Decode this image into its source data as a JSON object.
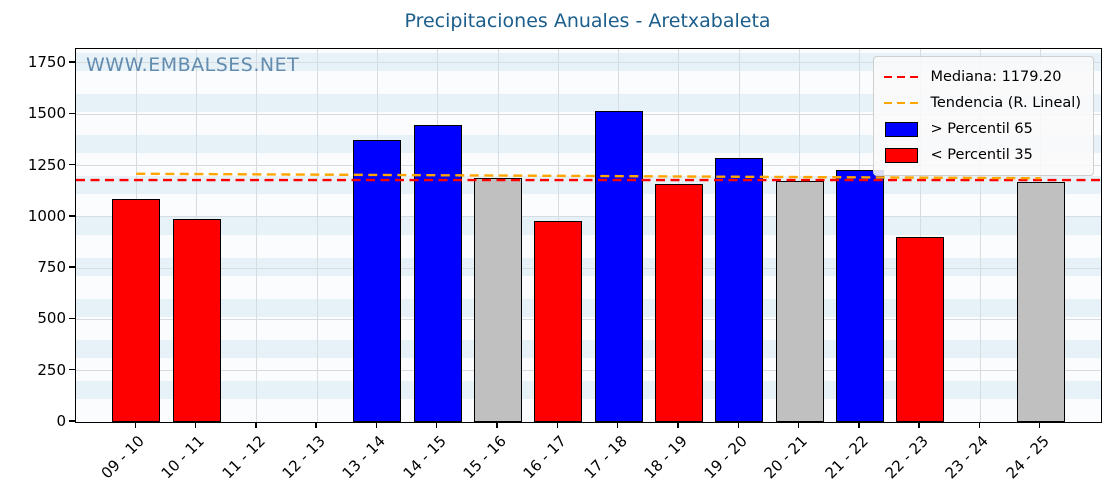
{
  "title": "Precipitaciones Anuales - Aretxabaleta",
  "title_color": "#1b5e8c",
  "watermark": "WWW.EMBALSES.NET",
  "legend": {
    "items": [
      {
        "label": "Mediana: 1179.20",
        "type": "dashed-line",
        "color": "#ff0000",
        "name": "legend-median"
      },
      {
        "label": "Tendencia (R. Lineal)",
        "type": "dashed-line",
        "color": "#ffa500",
        "name": "legend-trend"
      },
      {
        "label": "> Percentil 65",
        "type": "rect",
        "color": "#0000ff",
        "name": "legend-above-p65"
      },
      {
        "label": "< Percentil 35",
        "type": "rect",
        "color": "#ff0000",
        "name": "legend-below-p35"
      }
    ]
  },
  "chart_data": {
    "type": "bar",
    "title": "Precipitaciones Anuales - Aretxabaleta",
    "xlabel": "",
    "ylabel": "",
    "categories": [
      "09 - 10",
      "10 - 11",
      "11 - 12",
      "12 - 13",
      "13 - 14",
      "14 - 15",
      "15 - 16",
      "16 - 17",
      "17 - 18",
      "18 - 19",
      "19 - 20",
      "20 - 21",
      "21 - 22",
      "22 - 23",
      "23 - 24",
      "24 - 25"
    ],
    "values": [
      1085,
      990,
      null,
      null,
      1375,
      1450,
      1190,
      980,
      1515,
      1160,
      1285,
      1175,
      1230,
      900,
      null,
      1170
    ],
    "bar_categories": [
      "below",
      "below",
      null,
      null,
      "above",
      "above",
      "mid",
      "below",
      "above",
      "below",
      "above",
      "mid",
      "above",
      "below",
      null,
      "mid"
    ],
    "bar_colors": {
      "above": "#0000ff",
      "below": "#ff0000",
      "mid": "#c0c0c0"
    },
    "median": 1179.2,
    "median_color": "#ff0000",
    "trend": {
      "start": 1210,
      "end": 1188,
      "color": "#ffa500"
    },
    "yticks": [
      0,
      250,
      500,
      750,
      1000,
      1250,
      1500,
      1750
    ],
    "ylim": [
      0,
      1818
    ],
    "grid": true,
    "legend_position": "upper right",
    "x_tick_rotation": 45
  }
}
